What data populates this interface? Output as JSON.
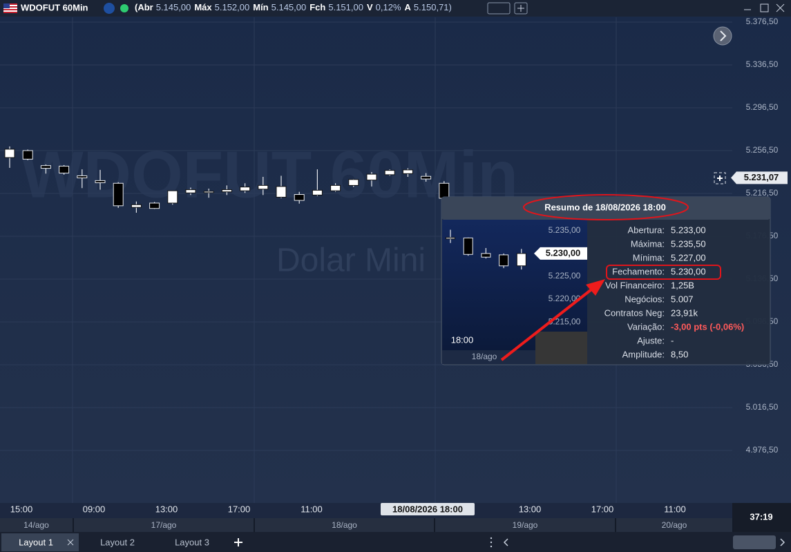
{
  "header": {
    "symbol": "WDOFUT 60Min",
    "quote": [
      {
        "label": "(Abr",
        "value": "5.145,00"
      },
      {
        "label": "Máx",
        "value": "5.152,00"
      },
      {
        "label": "Mín",
        "value": "5.145,00"
      },
      {
        "label": "Fch",
        "value": "5.151,00"
      },
      {
        "label": "V",
        "value": "0,12%"
      },
      {
        "label": "A",
        "value": "5.150,71)"
      }
    ]
  },
  "chart_data": {
    "type": "candlestick",
    "watermark": "WDOFUT 60Min",
    "watermark_sub": "Dolar Mini",
    "up_color": "#ffffff",
    "down_color": "#000000",
    "open": [
      5250.0,
      5256.5,
      5242.5,
      5242.0,
      5233.0,
      5228.5,
      5226.0,
      5203.5,
      5207.5,
      5207.5,
      5217.0,
      5217.5,
      5218.0,
      5219.0,
      5220.5,
      5213.0,
      5215.5,
      5215.0,
      5219.0,
      5224.0,
      5229.0,
      5234.0,
      5235.0,
      5232.5,
      5226.0
    ],
    "high": [
      5260.4,
      5257.5,
      5243.5,
      5243.0,
      5239.0,
      5238.5,
      5227.0,
      5209.0,
      5208.5,
      5219.0,
      5222.0,
      5221.0,
      5224.0,
      5226.0,
      5232.0,
      5233.0,
      5218.0,
      5239.0,
      5226.0,
      5230.0,
      5236.5,
      5239.0,
      5240.0,
      5235.5,
      5228.0
    ],
    "low": [
      5240.4,
      5247.5,
      5235.0,
      5234.0,
      5221.5,
      5220.0,
      5203.0,
      5198.5,
      5202.0,
      5206.0,
      5215.0,
      5212.5,
      5215.0,
      5217.0,
      5215.0,
      5212.0,
      5207.0,
      5214.0,
      5218.0,
      5222.5,
      5223.0,
      5233.0,
      5232.0,
      5227.5,
      5210.0
    ],
    "close": [
      5257.8,
      5248.5,
      5240.0,
      5235.5,
      5231.0,
      5226.5,
      5205.0,
      5206.0,
      5202.5,
      5219.0,
      5220.0,
      5218.5,
      5220.0,
      5222.5,
      5224.0,
      5223.0,
      5210.0,
      5219.5,
      5224.0,
      5229.5,
      5234.5,
      5238.0,
      5238.5,
      5230.0,
      5212.0
    ],
    "ylim": [
      4927.5,
      5381.0
    ],
    "yticks": [
      {
        "value": 5376.5,
        "label": "5.376,50"
      },
      {
        "value": 5336.5,
        "label": "5.336,50"
      },
      {
        "value": 5296.5,
        "label": "5.296,50"
      },
      {
        "value": 5256.5,
        "label": "5.256,50"
      },
      {
        "value": 5216.5,
        "label": "5.216,50"
      },
      {
        "value": 5176.5,
        "label": "5.176,50"
      },
      {
        "value": 5136.5,
        "label": "5.136,50"
      },
      {
        "value": 5096.5,
        "label": "5.096,50"
      },
      {
        "value": 5056.5,
        "label": "5.056,50"
      },
      {
        "value": 5016.5,
        "label": "5.016,50"
      },
      {
        "value": 4976.5,
        "label": "4.976,50"
      }
    ],
    "grid": true,
    "last_price": {
      "value": 5231.07,
      "label": "5.231,07"
    },
    "time_labels": [
      "15:00",
      "09:00",
      "13:00",
      "17:00",
      "11:00",
      "13:00",
      "17:00",
      "11:00"
    ],
    "day_labels": [
      "14/ago",
      "17/ago",
      "18/ago",
      "19/ago",
      "20/ago"
    ],
    "crosshair_label": "18/08/2026 18:00",
    "countdown": "37:19"
  },
  "popup": {
    "title": "Resumo de 18/08/2026 18:00",
    "mini_chart": {
      "open": [
        5233.5,
        5233.4,
        5230.0,
        5229.7,
        5227.3
      ],
      "high": [
        5235.2,
        5233.5,
        5231.2,
        5230.0,
        5231.0
      ],
      "low": [
        5232.3,
        5229.5,
        5228.9,
        5226.8,
        5226.5
      ],
      "close": [
        5233.5,
        5229.8,
        5229.2,
        5227.3,
        5230.0
      ],
      "ylim": [
        5212.9,
        5237.4
      ],
      "yticks": [
        {
          "value": 5235,
          "label": "5.235,00"
        },
        {
          "value": 5230,
          "label": "5.230,00"
        },
        {
          "value": 5225,
          "label": "5.225,00"
        },
        {
          "value": 5220,
          "label": "5.220,00"
        },
        {
          "value": 5215,
          "label": "5.215,00"
        }
      ],
      "last_price": {
        "value": 5230,
        "label": "5.230,00"
      },
      "time_label": "18:00",
      "day_label": "18/ago"
    },
    "rows": [
      {
        "label": "Abertura:",
        "value": "5.233,00"
      },
      {
        "label": "Máxima:",
        "value": "5.235,50"
      },
      {
        "label": "Mínima:",
        "value": "5.227,00"
      },
      {
        "label": "Fechamento:",
        "value": "5.230,00"
      },
      {
        "label": "Vol Financeiro:",
        "value": "1,25B"
      },
      {
        "label": "Negócios:",
        "value": "5.007"
      },
      {
        "label": "Contratos Neg:",
        "value": "23,91k"
      },
      {
        "label": "Variação:",
        "value": "-3,00 pts (-0,06%)"
      },
      {
        "label": "Ajuste:",
        "value": "-"
      },
      {
        "label": "Amplitude:",
        "value": "8,50"
      }
    ]
  },
  "tabs": [
    "Layout 1",
    "Layout 2",
    "Layout 3"
  ]
}
